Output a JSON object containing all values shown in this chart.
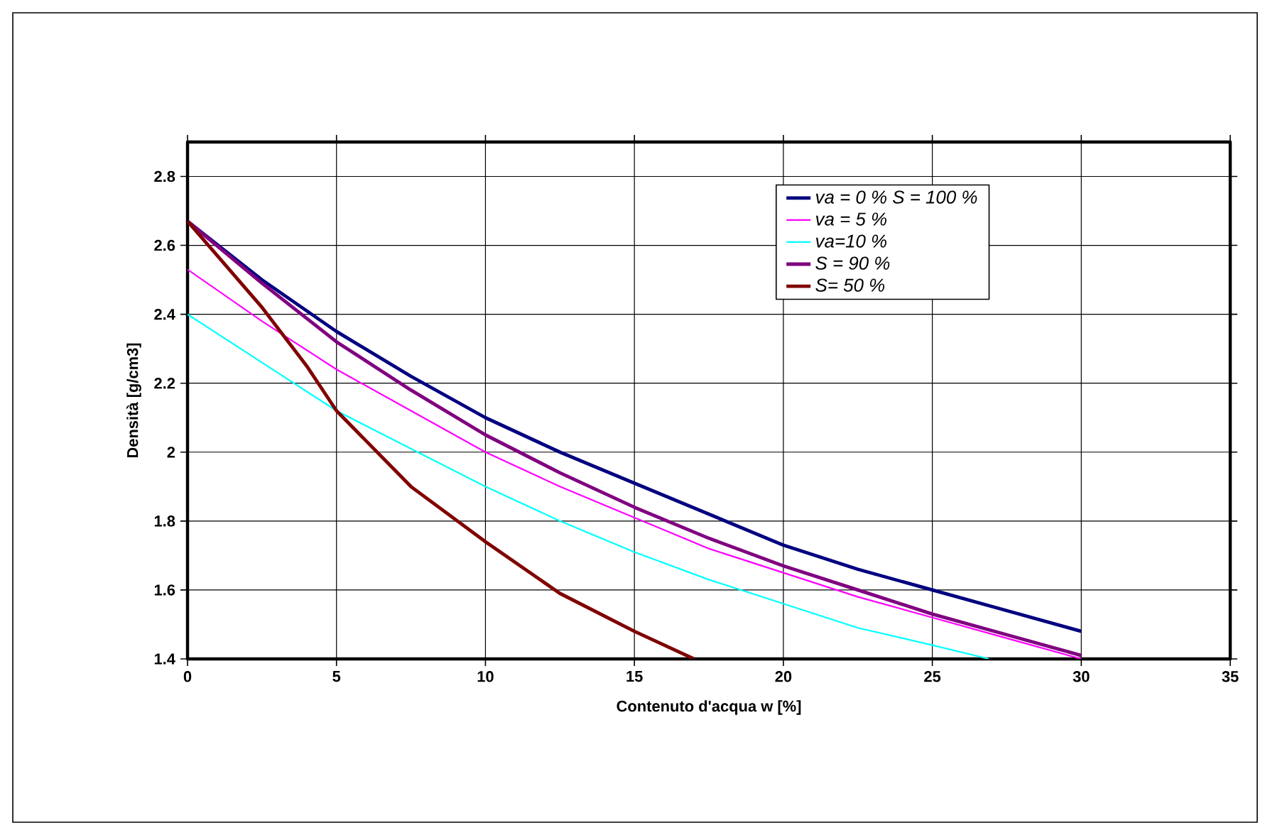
{
  "chart_data": {
    "type": "line",
    "xlabel": "Contenuto d'acqua w  [%]",
    "ylabel": "Densità [g/cm3]",
    "xlim": [
      0,
      35
    ],
    "xticks": [
      0,
      5,
      10,
      15,
      20,
      25,
      30,
      35
    ],
    "ylim": [
      1.4,
      2.9
    ],
    "yticks": [
      1.4,
      1.6,
      1.8,
      2,
      2.2,
      2.4,
      2.6,
      2.8
    ],
    "grid": true,
    "legend": "top right",
    "marker": "none",
    "line_style": "solid",
    "series": [
      {
        "name": "va = 0 %   S = 100 %",
        "color": "#000080",
        "x": [
          0,
          2.5,
          5,
          7.5,
          10,
          12.5,
          15,
          17.5,
          20,
          22.5,
          25,
          27.5,
          30
        ],
        "values": [
          2.67,
          2.5,
          2.35,
          2.22,
          2.1,
          2.0,
          1.91,
          1.82,
          1.73,
          1.66,
          1.6,
          1.54,
          1.48
        ]
      },
      {
        "name": "va = 5 %",
        "color": "#ff00ff",
        "x": [
          0,
          2.5,
          5,
          7.5,
          10,
          12.5,
          15,
          17.5,
          20,
          22.5,
          25,
          27.5,
          30
        ],
        "values": [
          2.53,
          2.38,
          2.24,
          2.12,
          2.0,
          1.9,
          1.81,
          1.72,
          1.65,
          1.58,
          1.52,
          1.46,
          1.4
        ]
      },
      {
        "name": "va=10 %",
        "color": "#00ffff",
        "x": [
          0,
          2.5,
          5,
          7.5,
          10,
          12.5,
          15,
          17.5,
          20,
          22.5,
          25,
          26.9
        ],
        "values": [
          2.4,
          2.26,
          2.12,
          2.01,
          1.9,
          1.8,
          1.71,
          1.63,
          1.56,
          1.49,
          1.44,
          1.4
        ]
      },
      {
        "name": "S = 90 %",
        "color": "#800080",
        "x": [
          0,
          2.5,
          5,
          7.5,
          10,
          12.5,
          15,
          17.5,
          20,
          22.5,
          25,
          27.5,
          30
        ],
        "values": [
          2.67,
          2.49,
          2.32,
          2.18,
          2.05,
          1.94,
          1.84,
          1.75,
          1.67,
          1.6,
          1.53,
          1.47,
          1.41
        ]
      },
      {
        "name": "S= 50 %",
        "color": "#800000",
        "x": [
          0,
          2.5,
          4,
          5,
          7.5,
          10,
          12.5,
          15,
          17
        ],
        "values": [
          2.67,
          2.42,
          2.25,
          2.12,
          1.9,
          1.74,
          1.59,
          1.48,
          1.4
        ]
      }
    ]
  }
}
